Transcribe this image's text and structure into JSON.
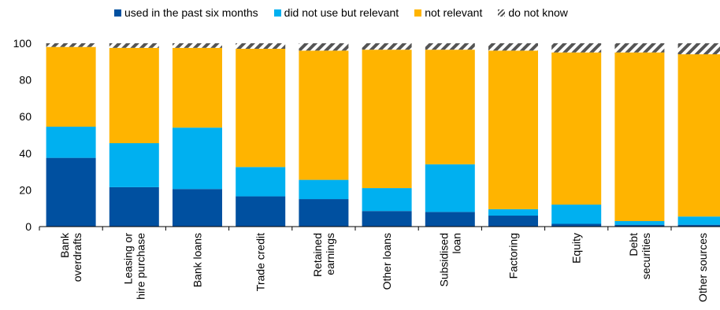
{
  "chart_data": {
    "type": "bar",
    "stacked": true,
    "categories": [
      [
        "Bank",
        "overdrafts"
      ],
      [
        "Leasing or",
        "hire purchase"
      ],
      [
        "Bank loans"
      ],
      [
        "Trade credit"
      ],
      [
        "Retained",
        "earnings"
      ],
      [
        "Other loans"
      ],
      [
        "Subsidised",
        "loan"
      ],
      [
        "Factoring"
      ],
      [
        "Equity"
      ],
      [
        "Debt",
        "securities"
      ],
      [
        "Other sources"
      ]
    ],
    "series": [
      {
        "name": "used in the past six months",
        "color": "#0050a0",
        "values": [
          37.5,
          21.5,
          20.5,
          16.5,
          15,
          8.5,
          8,
          6,
          1.5,
          1,
          1
        ]
      },
      {
        "name": "did not use but relevant",
        "color": "#00b0f0",
        "values": [
          17,
          24,
          33.5,
          16,
          10.5,
          12.5,
          26,
          3.5,
          10.5,
          2,
          4.5
        ]
      },
      {
        "name": "not relevant",
        "color": "#ffb400",
        "values": [
          43.5,
          52,
          43.5,
          64.5,
          70.5,
          75.5,
          62.5,
          86.5,
          83,
          92,
          88.5
        ]
      },
      {
        "name": "do not know",
        "color": "#555555",
        "hatched": true,
        "values": [
          2,
          2.5,
          2.5,
          3,
          4,
          3.5,
          3.5,
          4,
          5,
          5,
          6
        ]
      }
    ],
    "title": "",
    "xlabel": "",
    "ylabel": "",
    "ylim": [
      0,
      100
    ],
    "yticks": [
      0,
      20,
      40,
      60,
      80,
      100
    ],
    "grid": false,
    "legend_position": "top"
  }
}
